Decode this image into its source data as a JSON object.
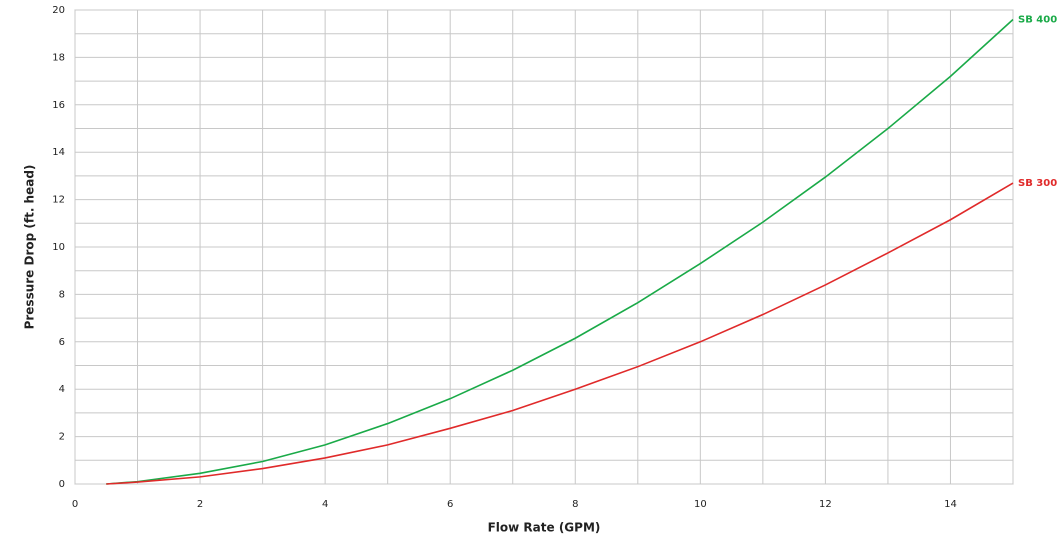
{
  "chart_data": {
    "type": "line",
    "x_label": "Flow Rate (GPM)",
    "y_label": "Pressure Drop (ft. head)",
    "x": [
      0.5,
      1,
      2,
      3,
      4,
      5,
      6,
      7,
      8,
      9,
      10,
      11,
      12,
      13,
      14,
      15
    ],
    "series": [
      {
        "name": "SB 400",
        "color": "#1aaa48",
        "values": [
          0,
          0.1,
          0.45,
          0.95,
          1.65,
          2.55,
          3.6,
          4.8,
          6.15,
          7.65,
          9.3,
          11.05,
          12.95,
          15.0,
          17.2,
          19.6
        ]
      },
      {
        "name": "SB 300",
        "color": "#e02a2a",
        "values": [
          0,
          0.08,
          0.3,
          0.65,
          1.1,
          1.65,
          2.35,
          3.1,
          4.0,
          4.95,
          6.0,
          7.15,
          8.4,
          9.75,
          11.15,
          12.7
        ]
      }
    ],
    "xlim": [
      0,
      15
    ],
    "xticks": [
      0,
      2,
      4,
      6,
      8,
      10,
      12,
      14
    ],
    "ylim": [
      0,
      20
    ],
    "yticks": [
      0,
      2,
      4,
      6,
      8,
      10,
      12,
      14,
      16,
      18,
      20
    ],
    "grid": true,
    "minor_xgrid": [
      1,
      3,
      5,
      7,
      9,
      11,
      13,
      15
    ],
    "minor_ygrid": [
      1,
      3,
      5,
      7,
      9,
      11,
      13,
      15,
      17,
      19
    ],
    "legend": "line-end"
  }
}
